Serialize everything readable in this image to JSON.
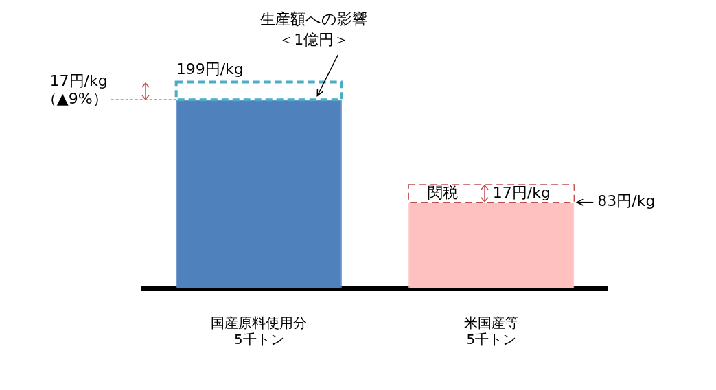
{
  "chart_data": {
    "type": "bar",
    "stacked": true,
    "categories": [
      "国産原料使用分\n5千トン",
      "米国産等\n5千トン"
    ],
    "series": [
      {
        "colors": [
          "#4f81bd",
          "#ffc0c0"
        ],
        "values": [
          182,
          83
        ],
        "value_labels": [
          null,
          "83円/kg"
        ]
      },
      {
        "colors": [
          "#4bacc6",
          "#c0504d"
        ],
        "values": [
          17,
          17
        ],
        "line_style": "dashed",
        "value_labels": [
          "17円/kg\n（▲9%）",
          "17円/kg"
        ]
      }
    ],
    "totals": [
      "199円/kg",
      null
    ],
    "annotations": [
      "生産額への影響",
      "＜1億円＞",
      "関税"
    ],
    "legend": false,
    "grid": false
  }
}
